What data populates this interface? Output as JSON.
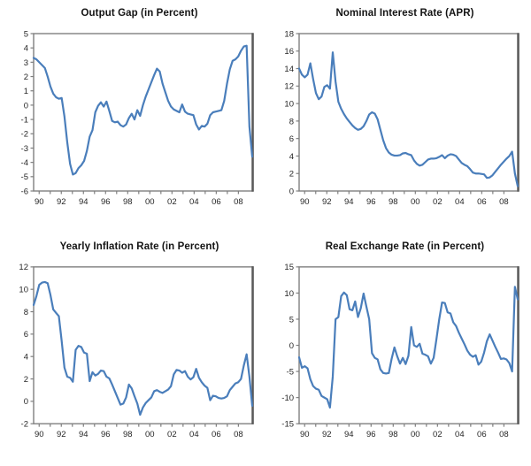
{
  "page": {
    "background": "#ffffff"
  },
  "colors": {
    "line": "#4a7ebb",
    "plot_border": "#7f7f7f",
    "plot_border_right": "#595959",
    "tick": "#7f7f7f",
    "tick_text": "#262626",
    "title_text": "#141414"
  },
  "chart_data": [
    {
      "type": "line",
      "title": "Output Gap (in Percent)",
      "xlabel": "",
      "ylabel": "",
      "x_start": 1990,
      "x_step": 0.25,
      "x_tick_interval_years": 1,
      "x_tick_labels": [
        "90",
        "92",
        "94",
        "96",
        "98",
        "00",
        "02",
        "04",
        "06",
        "08"
      ],
      "ylim": [
        -6,
        5
      ],
      "y_ticks": [
        5,
        4,
        3,
        2,
        1,
        0,
        -1,
        -2,
        -3,
        -4,
        -5,
        -6
      ],
      "grid": false,
      "legend": "none",
      "values": [
        3.3,
        3.2,
        3.0,
        2.8,
        2.6,
        2.0,
        1.3,
        0.8,
        0.55,
        0.45,
        0.5,
        -0.8,
        -2.6,
        -4.1,
        -4.85,
        -4.75,
        -4.4,
        -4.2,
        -3.9,
        -3.2,
        -2.2,
        -1.75,
        -0.5,
        -0.05,
        0.2,
        -0.1,
        0.25,
        -0.4,
        -1.1,
        -1.2,
        -1.15,
        -1.4,
        -1.5,
        -1.35,
        -0.9,
        -0.6,
        -1.0,
        -0.35,
        -0.75,
        0.0,
        0.6,
        1.1,
        1.6,
        2.1,
        2.55,
        2.35,
        1.5,
        0.9,
        0.3,
        -0.1,
        -0.3,
        -0.4,
        -0.5,
        0.05,
        -0.45,
        -0.6,
        -0.65,
        -0.7,
        -1.35,
        -1.7,
        -1.45,
        -1.5,
        -1.3,
        -0.7,
        -0.5,
        -0.45,
        -0.4,
        -0.35,
        0.3,
        1.5,
        2.5,
        3.1,
        3.2,
        3.4,
        3.8,
        4.1,
        4.15,
        -1.5,
        -3.6
      ]
    },
    {
      "type": "line",
      "title": "Nominal Interest Rate (APR)",
      "xlabel": "",
      "ylabel": "",
      "x_start": 1990,
      "x_step": 0.25,
      "x_tick_interval_years": 1,
      "x_tick_labels": [
        "90",
        "92",
        "94",
        "96",
        "98",
        "00",
        "02",
        "04",
        "06",
        "08"
      ],
      "ylim": [
        0,
        18
      ],
      "y_ticks": [
        18,
        16,
        14,
        12,
        10,
        8,
        6,
        4,
        2,
        0
      ],
      "grid": false,
      "legend": "none",
      "values": [
        14.0,
        13.3,
        13.0,
        13.3,
        14.6,
        12.8,
        11.2,
        10.5,
        10.8,
        11.9,
        12.1,
        11.7,
        15.85,
        12.5,
        10.2,
        9.4,
        8.8,
        8.3,
        7.9,
        7.5,
        7.2,
        7.0,
        7.1,
        7.4,
        8.0,
        8.75,
        9.0,
        8.85,
        8.2,
        7.0,
        5.8,
        4.9,
        4.4,
        4.15,
        4.05,
        4.05,
        4.1,
        4.3,
        4.35,
        4.2,
        4.1,
        3.5,
        3.1,
        2.9,
        3.0,
        3.3,
        3.6,
        3.7,
        3.7,
        3.75,
        3.9,
        4.1,
        3.75,
        4.05,
        4.2,
        4.15,
        4.0,
        3.6,
        3.2,
        3.0,
        2.85,
        2.5,
        2.1,
        2.0,
        2.0,
        1.95,
        1.9,
        1.5,
        1.55,
        1.8,
        2.2,
        2.6,
        3.0,
        3.35,
        3.7,
        4.0,
        4.5,
        2.0,
        0.55
      ]
    },
    {
      "type": "line",
      "title": "Yearly Inflation Rate (in Percent)",
      "xlabel": "",
      "ylabel": "",
      "x_start": 1990,
      "x_step": 0.25,
      "x_tick_interval_years": 1,
      "x_tick_labels": [
        "90",
        "92",
        "94",
        "96",
        "98",
        "00",
        "02",
        "04",
        "06",
        "08"
      ],
      "ylim": [
        -2,
        12
      ],
      "y_ticks": [
        12,
        10,
        8,
        6,
        4,
        2,
        0,
        -2
      ],
      "grid": false,
      "legend": "none",
      "values": [
        8.6,
        9.4,
        10.4,
        10.6,
        10.65,
        10.55,
        9.5,
        8.2,
        7.9,
        7.6,
        5.4,
        3.0,
        2.2,
        2.1,
        1.75,
        4.6,
        4.95,
        4.85,
        4.35,
        4.25,
        1.8,
        2.6,
        2.3,
        2.45,
        2.75,
        2.7,
        2.2,
        2.05,
        1.5,
        0.9,
        0.3,
        -0.3,
        -0.2,
        0.35,
        1.5,
        1.15,
        0.45,
        -0.2,
        -1.2,
        -0.55,
        -0.15,
        0.1,
        0.35,
        0.9,
        1.0,
        0.85,
        0.75,
        0.9,
        1.05,
        1.35,
        2.4,
        2.8,
        2.75,
        2.55,
        2.7,
        2.2,
        1.95,
        2.15,
        2.9,
        2.1,
        1.7,
        1.4,
        1.2,
        0.1,
        0.5,
        0.45,
        0.3,
        0.25,
        0.3,
        0.45,
        1.0,
        1.3,
        1.6,
        1.7,
        2.0,
        3.2,
        4.2,
        2.2,
        -0.4
      ]
    },
    {
      "type": "line",
      "title": "Real Exchange Rate (in Percent)",
      "xlabel": "",
      "ylabel": "",
      "x_start": 1990,
      "x_step": 0.25,
      "x_tick_interval_years": 1,
      "x_tick_labels": [
        "90",
        "92",
        "94",
        "96",
        "98",
        "00",
        "02",
        "04",
        "06",
        "08"
      ],
      "ylim": [
        -15,
        15
      ],
      "y_ticks": [
        15,
        10,
        5,
        0,
        -5,
        -10,
        -15
      ],
      "grid": false,
      "legend": "none",
      "values": [
        -2.3,
        -4.3,
        -4.0,
        -4.4,
        -6.5,
        -7.8,
        -8.3,
        -8.5,
        -9.7,
        -10.0,
        -10.3,
        -11.9,
        -6.0,
        5.0,
        5.4,
        9.4,
        10.1,
        9.6,
        6.9,
        6.7,
        8.4,
        5.4,
        7.1,
        9.9,
        7.4,
        5.0,
        -1.5,
        -2.4,
        -2.7,
        -4.6,
        -5.3,
        -5.4,
        -5.3,
        -2.6,
        -0.4,
        -2.1,
        -3.5,
        -2.4,
        -3.6,
        -2.0,
        3.5,
        0.0,
        -0.3,
        0.3,
        -1.6,
        -1.8,
        -2.1,
        -3.5,
        -2.4,
        1.2,
        5.0,
        8.2,
        8.1,
        6.3,
        6.1,
        4.4,
        3.7,
        2.4,
        1.3,
        0.2,
        -1.0,
        -1.8,
        -2.2,
        -1.9,
        -3.7,
        -3.1,
        -1.4,
        0.8,
        2.1,
        0.9,
        -0.3,
        -1.4,
        -2.6,
        -2.5,
        -2.7,
        -3.4,
        -5.0,
        11.2,
        8.8
      ]
    }
  ]
}
